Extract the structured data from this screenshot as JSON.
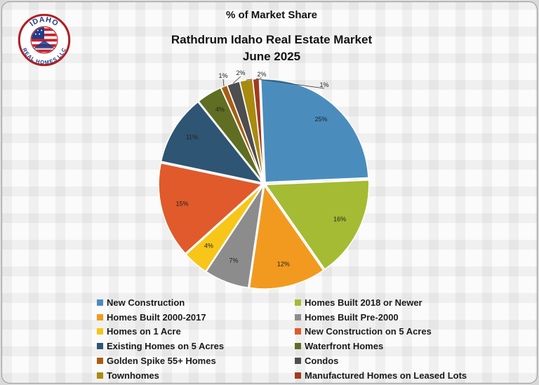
{
  "header": "% of Market Share",
  "logo": {
    "top_text": "IDAHO",
    "bottom_text": "REAL HOMES LLC"
  },
  "chart_data": {
    "type": "pie",
    "title": "Rathdrum Idaho Real Estate Market",
    "subtitle": "June 2025",
    "legend_position": "bottom",
    "slices": [
      {
        "name": "New Construction",
        "value": 25,
        "label": "25%",
        "color": "#4a8dbd"
      },
      {
        "name": "Homes Built 2018 or Newer",
        "value": 16,
        "label": "16%",
        "color": "#a5bb33"
      },
      {
        "name": "Homes Built 2000-2017",
        "value": 12,
        "label": "12%",
        "color": "#f29a1f"
      },
      {
        "name": "Homes Built Pre-2000",
        "value": 7,
        "label": "7%",
        "color": "#8c8c8c"
      },
      {
        "name": "Homes on 1 Acre",
        "value": 4,
        "label": "4%",
        "color": "#f7c619"
      },
      {
        "name": "New Construction on 5 Acres",
        "value": 15,
        "label": "15%",
        "color": "#e05a2b"
      },
      {
        "name": "Existing Homes on 5 Acres",
        "value": 11,
        "label": "11%",
        "color": "#2e5573"
      },
      {
        "name": "Waterfront Homes",
        "value": 4,
        "label": "4%",
        "color": "#5f6e22"
      },
      {
        "name": "Golden Spike 55+ Homes",
        "value": 1,
        "label": "1%",
        "color": "#a85e12"
      },
      {
        "name": "Condos",
        "value": 2,
        "label": "2%",
        "color": "#4e4e4e"
      },
      {
        "name": "Townhomes",
        "value": 2,
        "label": "2%",
        "color": "#a88a0e"
      },
      {
        "name": "Manufactured Homes on Leased Lots",
        "value": 1,
        "label": "1%",
        "color": "#a13a20"
      }
    ]
  }
}
